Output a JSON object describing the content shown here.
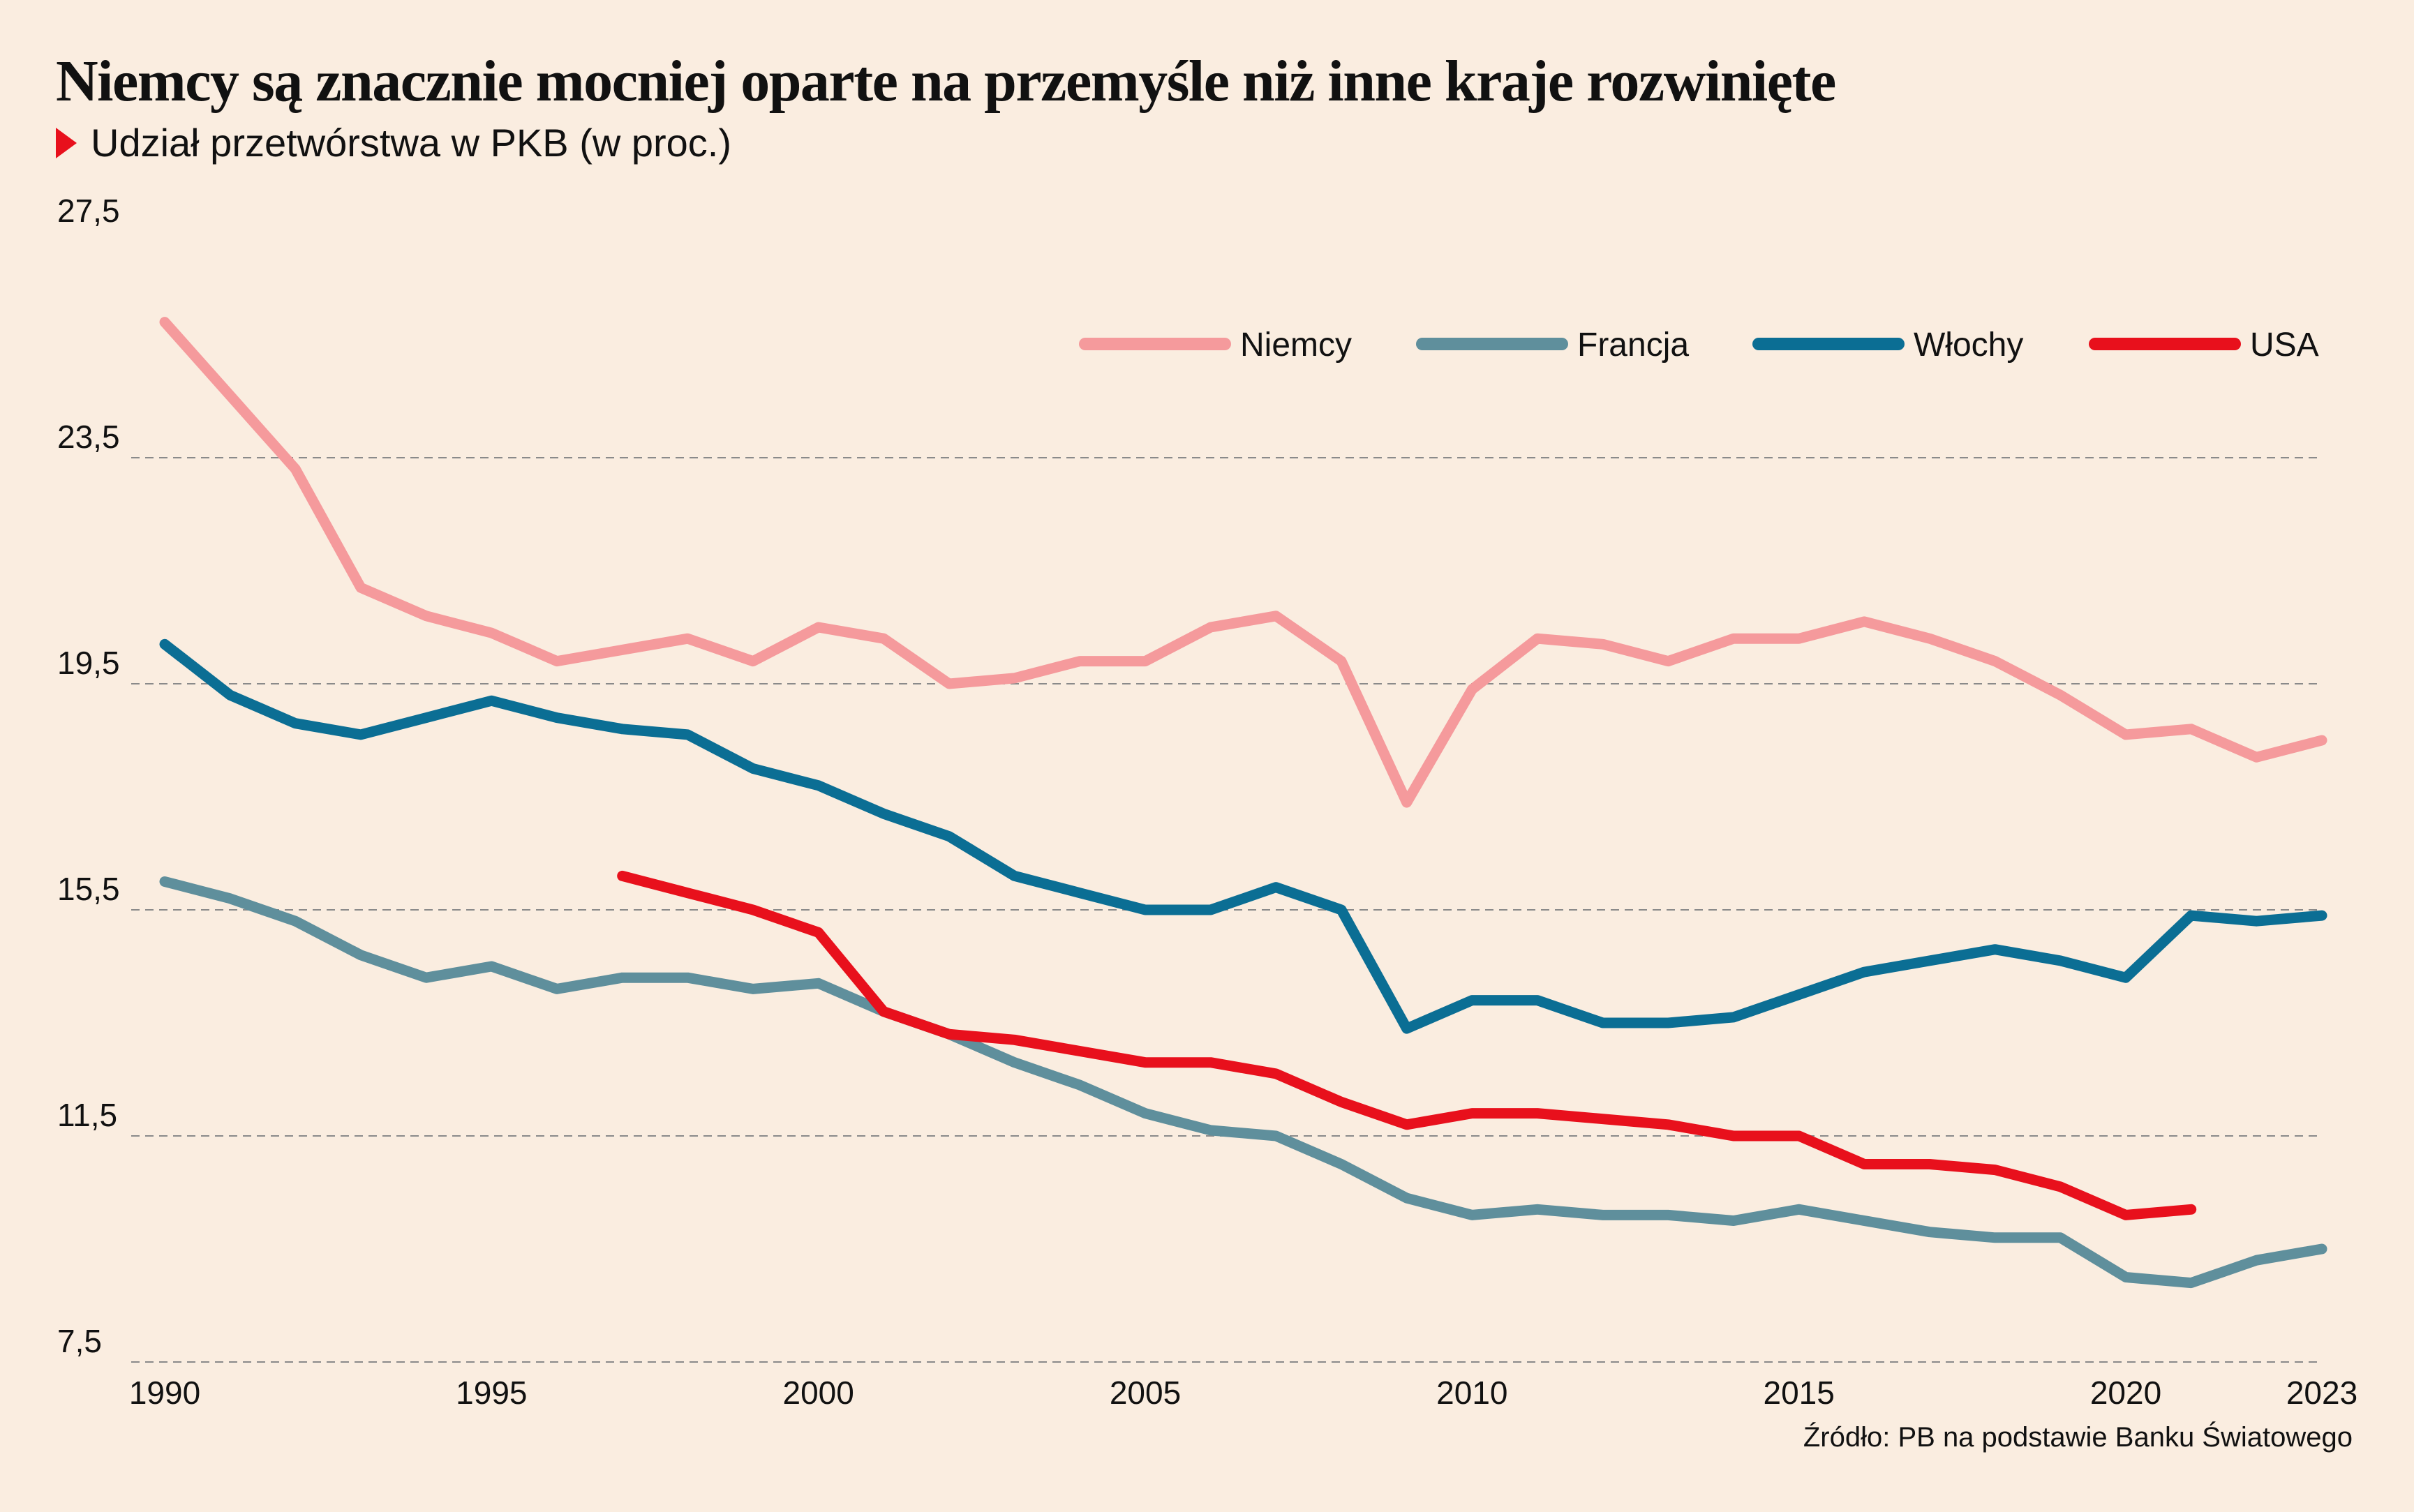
{
  "header": {
    "title": "Niemcy są znacznie mocniej oparte na przemyśle niż inne kraje rozwinięte",
    "subtitle": "Udział przetwórstwa w PKB (w proc.)"
  },
  "footer": {
    "source": "Źródło: PB na podstawie Banku Światowego"
  },
  "colors": {
    "background": "#faede0",
    "marker": "#e8101c",
    "grid": "#8a8a8a"
  },
  "chart_data": {
    "type": "line",
    "title": "Niemcy są znacznie mocniej oparte na przemyśle niż inne kraje rozwinięte",
    "subtitle": "Udział przetwórstwa w PKB (w proc.)",
    "xlabel": "",
    "ylabel": "",
    "xlim": [
      1990,
      2023
    ],
    "ylim": [
      7.5,
      27.5
    ],
    "y_ticks": [
      "27,5",
      "23,5",
      "19,5",
      "15,5",
      "11,5",
      "7,5"
    ],
    "y_tick_values": [
      27.5,
      23.5,
      19.5,
      15.5,
      11.5,
      7.5
    ],
    "x_ticks": [
      "1990",
      "1995",
      "2000",
      "2005",
      "2010",
      "2015",
      "2020",
      "2023"
    ],
    "x_tick_values": [
      1990,
      1995,
      2000,
      2005,
      2010,
      2015,
      2020,
      2023
    ],
    "grid": "horizontal dashed",
    "legend_position": "top-right",
    "series": [
      {
        "name": "Niemcy",
        "color": "#f59a9c",
        "x": [
          1990,
          1991,
          1992,
          1993,
          1994,
          1995,
          1996,
          1997,
          1998,
          1999,
          2000,
          2001,
          2002,
          2003,
          2004,
          2005,
          2006,
          2007,
          2008,
          2009,
          2010,
          2011,
          2012,
          2013,
          2014,
          2015,
          2016,
          2017,
          2018,
          2019,
          2020,
          2021,
          2022,
          2023
        ],
        "y": [
          25.9,
          24.6,
          23.3,
          21.2,
          20.7,
          20.4,
          19.9,
          20.1,
          20.3,
          19.9,
          20.5,
          20.3,
          19.5,
          19.6,
          19.9,
          19.9,
          20.5,
          20.7,
          19.9,
          17.4,
          19.4,
          20.3,
          20.2,
          19.9,
          20.3,
          20.3,
          20.6,
          20.3,
          19.9,
          19.3,
          18.6,
          18.7,
          18.2,
          18.5
        ]
      },
      {
        "name": "Francja",
        "color": "#5f8f9c",
        "x": [
          1990,
          1991,
          1992,
          1993,
          1994,
          1995,
          1996,
          1997,
          1998,
          1999,
          2000,
          2001,
          2002,
          2003,
          2004,
          2005,
          2006,
          2007,
          2008,
          2009,
          2010,
          2011,
          2012,
          2013,
          2014,
          2015,
          2016,
          2017,
          2018,
          2019,
          2020,
          2021,
          2022,
          2023
        ],
        "y": [
          16.0,
          15.7,
          15.3,
          14.7,
          14.3,
          14.5,
          14.1,
          14.3,
          14.3,
          14.1,
          14.2,
          13.7,
          13.3,
          12.8,
          12.4,
          11.9,
          11.6,
          11.5,
          11.0,
          10.4,
          10.1,
          10.2,
          10.1,
          10.1,
          10.0,
          10.2,
          10.0,
          9.8,
          9.7,
          9.7,
          9.0,
          8.9,
          9.3,
          9.5
        ]
      },
      {
        "name": "Włochy",
        "color": "#0b6e94",
        "x": [
          1990,
          1991,
          1992,
          1993,
          1994,
          1995,
          1996,
          1997,
          1998,
          1999,
          2000,
          2001,
          2002,
          2003,
          2004,
          2005,
          2006,
          2007,
          2008,
          2009,
          2010,
          2011,
          2012,
          2013,
          2014,
          2015,
          2016,
          2017,
          2018,
          2019,
          2020,
          2021,
          2022,
          2023
        ],
        "y": [
          20.2,
          19.3,
          18.8,
          18.6,
          18.9,
          19.2,
          18.9,
          18.7,
          18.6,
          18.0,
          17.7,
          17.2,
          16.8,
          16.1,
          15.8,
          15.5,
          15.5,
          15.9,
          15.5,
          13.4,
          13.9,
          13.9,
          13.5,
          13.5,
          13.6,
          14.0,
          14.4,
          14.6,
          14.8,
          14.6,
          14.3,
          15.4,
          15.3,
          15.4
        ]
      },
      {
        "name": "USA",
        "color": "#e8101c",
        "x": [
          1997,
          1998,
          1999,
          2000,
          2001,
          2002,
          2003,
          2004,
          2005,
          2006,
          2007,
          2008,
          2009,
          2010,
          2011,
          2012,
          2013,
          2014,
          2015,
          2016,
          2017,
          2018,
          2019,
          2020,
          2021
        ],
        "y": [
          16.1,
          15.8,
          15.5,
          15.1,
          13.7,
          13.3,
          13.2,
          13.0,
          12.8,
          12.8,
          12.6,
          12.1,
          11.7,
          11.9,
          11.9,
          11.8,
          11.7,
          11.5,
          11.5,
          11.0,
          11.0,
          10.9,
          10.6,
          10.1,
          10.2
        ]
      }
    ]
  }
}
